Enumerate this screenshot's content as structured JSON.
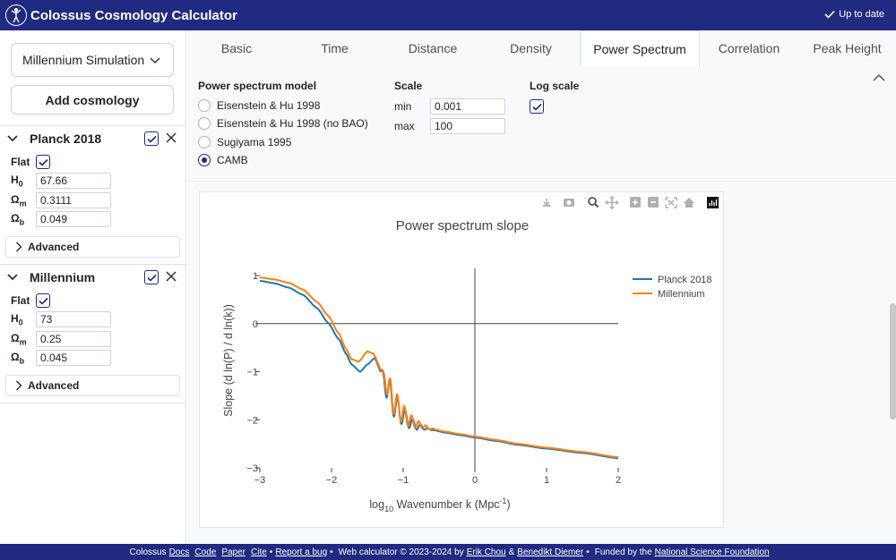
{
  "app": {
    "title": "Colossus Cosmology Calculator",
    "status": "Up to date"
  },
  "sidebar": {
    "selected_cosmology": "Millennium Simulation",
    "add_button": "Add cosmology",
    "cosmologies": [
      {
        "name": "Planck 2018",
        "flat_label": "Flat",
        "flat": true,
        "H0": "67.66",
        "Om": "0.3111",
        "Ob": "0.049",
        "advanced": "Advanced"
      },
      {
        "name": "Millennium",
        "flat_label": "Flat",
        "flat": true,
        "H0": "73",
        "Om": "0.25",
        "Ob": "0.045",
        "advanced": "Advanced"
      }
    ],
    "param_labels": {
      "H": "H",
      "H_sub": "0",
      "Om": "Ω",
      "Om_sub": "m",
      "Ob": "Ω",
      "Ob_sub": "b"
    }
  },
  "tabs": [
    "Basic",
    "Time",
    "Distance",
    "Density",
    "Power Spectrum",
    "Correlation",
    "Peak Height"
  ],
  "active_tab": "Power Spectrum",
  "controls": {
    "model_label": "Power spectrum model",
    "models": [
      "Eisenstein & Hu 1998",
      "Eisenstein & Hu 1998 (no BAO)",
      "Sugiyama 1995",
      "CAMB"
    ],
    "selected_model": "CAMB",
    "scale_label": "Scale",
    "min_label": "min",
    "min_value": "0.001",
    "max_label": "max",
    "max_value": "100",
    "log_label": "Log scale",
    "log_checked": true
  },
  "footer": {
    "brand": "Colossus",
    "links": [
      "Docs",
      "Code",
      "Paper",
      "Cite"
    ],
    "bug": "Report a bug",
    "copyright": "Web calculator © 2023-2024 by",
    "author1": "Erik Chou",
    "amp": "&",
    "author2": "Benedikt Diemer",
    "funded": "Funded by the",
    "nsf": "National Science Foundation",
    "bullet": "•"
  },
  "chart_data": {
    "type": "line",
    "title": "Power spectrum slope",
    "xlabel_prefix": "log",
    "xlabel_sub": "10",
    "xlabel_main": " Wavenumber k (Mpc",
    "xlabel_sup": "-1",
    "xlabel_end": ")",
    "ylabel": "Slope (d ln(P) / d ln(k))",
    "xlim": [
      -3,
      2
    ],
    "ylim": [
      -3,
      1
    ],
    "xticks": [
      -3,
      -2,
      -1,
      0,
      1,
      2
    ],
    "xtick_labels": [
      "−3",
      "−2",
      "−1",
      "0",
      "1",
      "2"
    ],
    "yticks": [
      1,
      0,
      -1,
      -2,
      -3
    ],
    "ytick_labels": [
      "1",
      "0",
      "−1",
      "−2",
      "−3"
    ],
    "legend_position": "top-right",
    "series": [
      {
        "name": "Planck 2018",
        "color": "#1f77b4",
        "base": [
          [
            -3,
            0.89
          ],
          [
            -2.8,
            0.84
          ],
          [
            -2.6,
            0.75
          ],
          [
            -2.4,
            0.6
          ],
          [
            -2.2,
            0.32
          ],
          [
            -2.05,
            0.02
          ],
          [
            -1.9,
            -0.32
          ],
          [
            -1.8,
            -0.62
          ],
          [
            -1.72,
            -0.85
          ],
          [
            -1.6,
            -1.0
          ],
          [
            -1.5,
            -0.85
          ],
          [
            -1.4,
            -0.72
          ],
          [
            -1.3,
            -1.03
          ],
          [
            -1.2,
            -1.44
          ],
          [
            -1.1,
            -1.75
          ],
          [
            -1.0,
            -1.93
          ],
          [
            -0.9,
            -2.06
          ],
          [
            -0.8,
            -2.14
          ],
          [
            -0.6,
            -2.21
          ],
          [
            -0.4,
            -2.27
          ],
          [
            -0.2,
            -2.32
          ],
          [
            0,
            -2.37
          ],
          [
            0.3,
            -2.44
          ],
          [
            0.6,
            -2.52
          ],
          [
            1.0,
            -2.6
          ],
          [
            1.5,
            -2.69
          ],
          [
            2.0,
            -2.8
          ]
        ],
        "osc": {
          "start": -1.32,
          "end": -0.55,
          "amp_start": 0.42,
          "period": 0.107,
          "phase": 0.0
        }
      },
      {
        "name": "Millennium",
        "color": "#ff7f0e",
        "base": [
          [
            -3,
            0.96
          ],
          [
            -2.8,
            0.92
          ],
          [
            -2.6,
            0.85
          ],
          [
            -2.4,
            0.71
          ],
          [
            -2.2,
            0.45
          ],
          [
            -2.05,
            0.17
          ],
          [
            -1.9,
            -0.2
          ],
          [
            -1.8,
            -0.52
          ],
          [
            -1.72,
            -0.74
          ],
          [
            -1.62,
            -0.79
          ],
          [
            -1.5,
            -0.58
          ],
          [
            -1.42,
            -0.62
          ],
          [
            -1.3,
            -0.98
          ],
          [
            -1.2,
            -1.38
          ],
          [
            -1.1,
            -1.69
          ],
          [
            -1.0,
            -1.88
          ],
          [
            -0.9,
            -2.02
          ],
          [
            -0.8,
            -2.1
          ],
          [
            -0.6,
            -2.19
          ],
          [
            -0.4,
            -2.25
          ],
          [
            -0.2,
            -2.3
          ],
          [
            0,
            -2.35
          ],
          [
            0.3,
            -2.42
          ],
          [
            0.6,
            -2.5
          ],
          [
            1.0,
            -2.58
          ],
          [
            1.5,
            -2.67
          ],
          [
            2.0,
            -2.78
          ]
        ],
        "osc": {
          "start": -1.3,
          "end": -0.5,
          "amp_start": 0.4,
          "period": 0.1,
          "phase": 0.5
        }
      }
    ]
  }
}
